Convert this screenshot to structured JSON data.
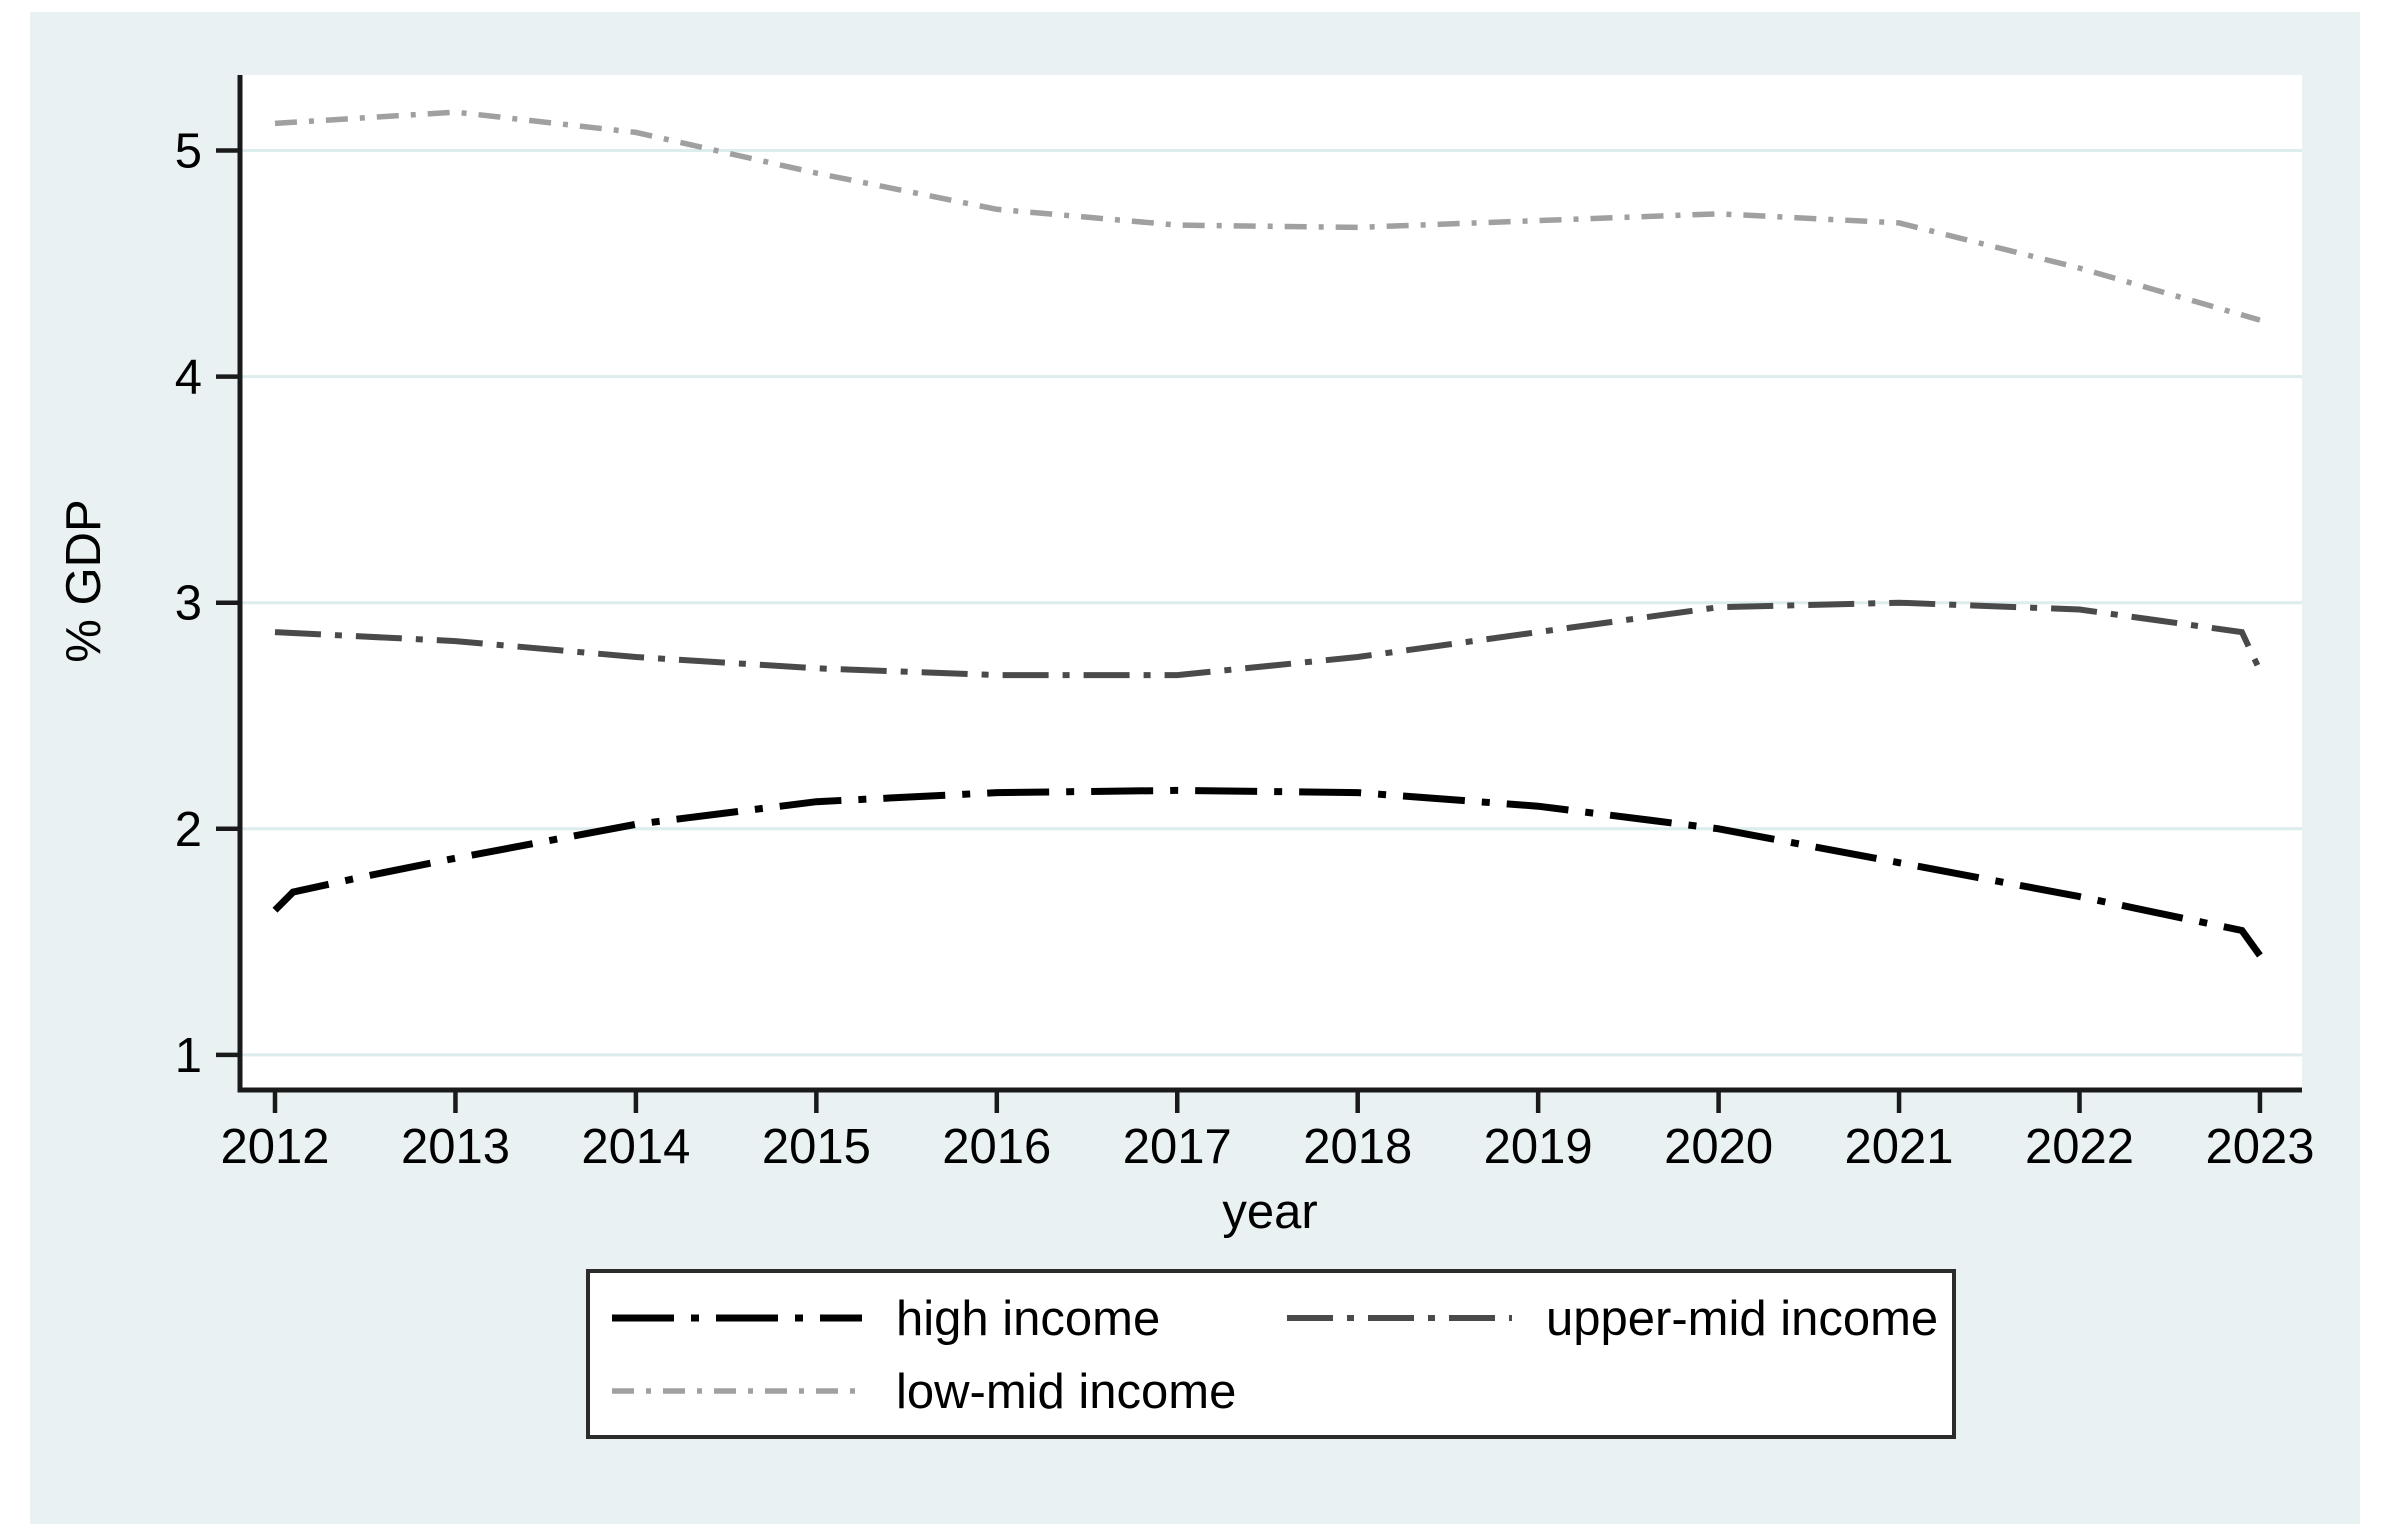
{
  "colors": {
    "canvas_bg": "#e9f1f2",
    "plot_bg": "#ffffff",
    "grid": "#ddecec",
    "axis": "#1a1a1a",
    "text": "#000000",
    "legend_border": "#2b2b2b",
    "legend_bg": "#ffffff"
  },
  "chart_data": {
    "type": "line",
    "title": "",
    "xlabel": "year",
    "ylabel": "% GDP",
    "x_ticks": [
      2012,
      2013,
      2014,
      2015,
      2016,
      2017,
      2018,
      2019,
      2020,
      2021,
      2022,
      2023
    ],
    "y_ticks": [
      1,
      2,
      3,
      4,
      5
    ],
    "xlim": [
      2011.8,
      2023.23
    ],
    "ylim": [
      0.85,
      5.33
    ],
    "grid": true,
    "legend_position": "bottom",
    "series": [
      {
        "name": "high income",
        "color": "#000000",
        "line_style": "long-dash-dot",
        "x": [
          2012,
          2012.1,
          2012.5,
          2013,
          2014,
          2015,
          2016,
          2017,
          2018,
          2019,
          2020,
          2021,
          2022,
          2022.9,
          2023
        ],
        "y": [
          1.64,
          1.72,
          1.79,
          1.87,
          2.02,
          2.12,
          2.16,
          2.17,
          2.16,
          2.1,
          2.0,
          1.85,
          1.7,
          1.55,
          1.44
        ]
      },
      {
        "name": "upper-mid income",
        "color": "#4a4a4a",
        "line_style": "dash-dot",
        "x": [
          2012,
          2013,
          2014,
          2015,
          2016,
          2017,
          2018,
          2019,
          2020,
          2021,
          2022,
          2022.9,
          2023
        ],
        "y": [
          2.87,
          2.83,
          2.76,
          2.71,
          2.68,
          2.68,
          2.76,
          2.87,
          2.98,
          3.0,
          2.97,
          2.87,
          2.7
        ]
      },
      {
        "name": "low-mid income",
        "color": "#a0a0a0",
        "line_style": "short-dash-dot",
        "x": [
          2012,
          2013,
          2014,
          2015,
          2016,
          2017,
          2018,
          2019,
          2020,
          2021,
          2022,
          2023
        ],
        "y": [
          5.12,
          5.17,
          5.08,
          4.9,
          4.74,
          4.67,
          4.66,
          4.69,
          4.72,
          4.68,
          4.48,
          4.25
        ]
      }
    ]
  }
}
